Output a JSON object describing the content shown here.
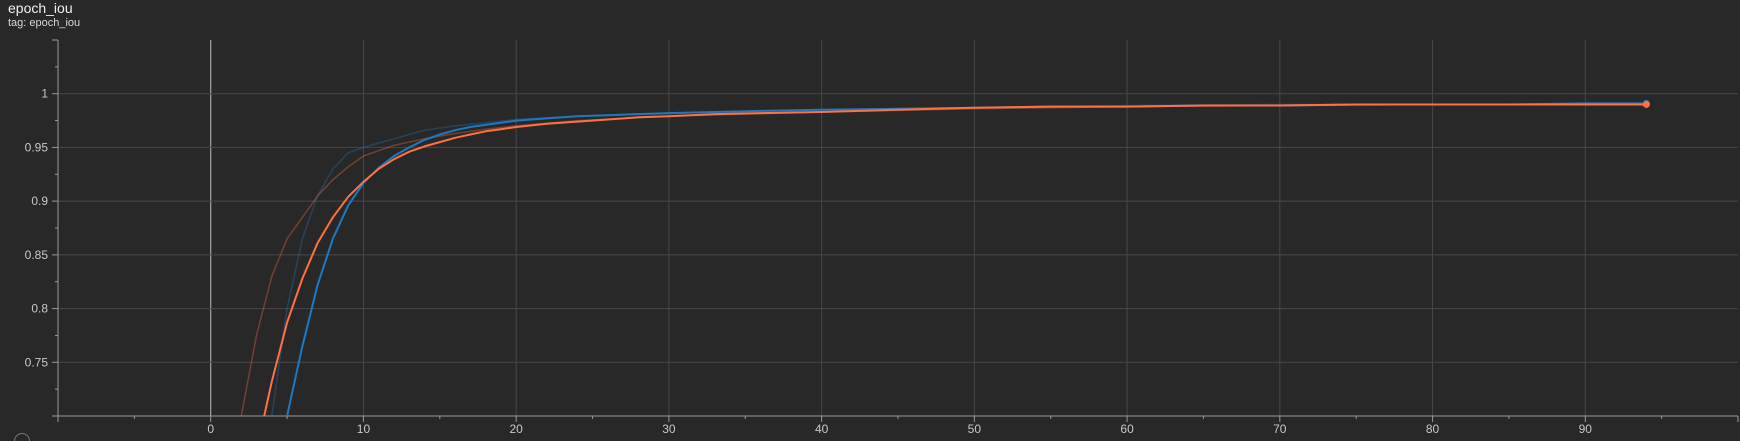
{
  "card": {
    "title": "epoch_iou",
    "tag": "tag: epoch_iou"
  },
  "colors": {
    "background": "#282828",
    "grid": "#474747",
    "axis": "#9a9a9a",
    "zero_line": "#bdbdbd",
    "series_blue": "#1f78c1",
    "series_orange": "#ff7043"
  },
  "chart_data": {
    "type": "line",
    "title": "epoch_iou",
    "xlabel": "",
    "ylabel": "",
    "xlim": [
      -10,
      100
    ],
    "ylim": [
      0.7,
      1.05
    ],
    "grid": true,
    "x_ticks": [
      0,
      10,
      20,
      30,
      40,
      50,
      60,
      70,
      80,
      90
    ],
    "y_ticks": [
      0.75,
      0.8,
      0.85,
      0.9,
      0.95,
      1
    ],
    "y_tick_labels": [
      "0.75",
      "0.8",
      "0.85",
      "0.9",
      "0.95",
      "1"
    ],
    "series": [
      {
        "color": "#1f78c1",
        "smoothed": true,
        "x": [
          5,
          6,
          7,
          8,
          9,
          10,
          11,
          12,
          13,
          14,
          15,
          16,
          17,
          18,
          19,
          20,
          22,
          24,
          26,
          28,
          30,
          33,
          36,
          40,
          45,
          50,
          55,
          60,
          65,
          70,
          75,
          80,
          85,
          90,
          94
        ],
        "values": [
          0.7,
          0.765,
          0.822,
          0.865,
          0.896,
          0.917,
          0.931,
          0.942,
          0.95,
          0.957,
          0.962,
          0.966,
          0.969,
          0.971,
          0.973,
          0.975,
          0.977,
          0.979,
          0.98,
          0.981,
          0.982,
          0.983,
          0.984,
          0.985,
          0.986,
          0.987,
          0.988,
          0.988,
          0.989,
          0.989,
          0.99,
          0.99,
          0.99,
          0.991,
          0.991
        ]
      },
      {
        "color": "#ff7043",
        "smoothed": true,
        "x": [
          3.5,
          4,
          5,
          6,
          7,
          8,
          9,
          10,
          11,
          12,
          13,
          14,
          15,
          16,
          17,
          18,
          19,
          20,
          22,
          24,
          26,
          28,
          30,
          33,
          36,
          40,
          45,
          50,
          55,
          60,
          65,
          70,
          75,
          80,
          85,
          90,
          94
        ],
        "values": [
          0.7,
          0.732,
          0.787,
          0.828,
          0.861,
          0.885,
          0.904,
          0.918,
          0.93,
          0.939,
          0.946,
          0.951,
          0.955,
          0.959,
          0.962,
          0.965,
          0.967,
          0.969,
          0.972,
          0.974,
          0.976,
          0.978,
          0.979,
          0.981,
          0.982,
          0.983,
          0.985,
          0.987,
          0.988,
          0.988,
          0.989,
          0.989,
          0.99,
          0.99,
          0.99,
          0.99,
          0.99
        ]
      },
      {
        "color": "#1f78c1",
        "smoothed": false,
        "x": [
          4,
          5,
          6,
          7,
          8,
          9,
          10,
          12,
          14,
          16,
          18,
          20,
          24,
          30,
          40,
          50,
          60,
          70,
          80,
          94
        ],
        "values": [
          0.7,
          0.8,
          0.865,
          0.905,
          0.93,
          0.945,
          0.95,
          0.958,
          0.966,
          0.97,
          0.973,
          0.976,
          0.979,
          0.982,
          0.985,
          0.987,
          0.989,
          0.99,
          0.99,
          0.991
        ]
      },
      {
        "color": "#ff7043",
        "smoothed": false,
        "x": [
          2,
          3,
          4,
          5,
          6,
          7,
          8,
          9,
          10,
          12,
          14,
          16,
          18,
          20,
          24,
          30,
          40,
          50,
          60,
          70,
          80,
          94
        ],
        "values": [
          0.7,
          0.775,
          0.83,
          0.865,
          0.885,
          0.905,
          0.92,
          0.932,
          0.942,
          0.952,
          0.958,
          0.963,
          0.967,
          0.97,
          0.975,
          0.979,
          0.983,
          0.986,
          0.988,
          0.989,
          0.99,
          0.99
        ]
      }
    ]
  }
}
